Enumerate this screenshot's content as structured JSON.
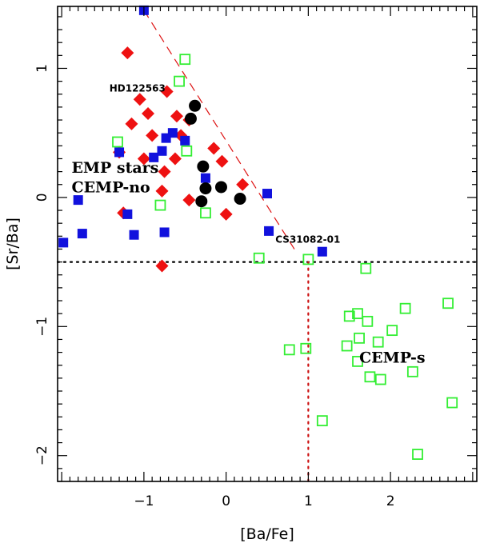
{
  "chart_data": {
    "type": "scatter",
    "title": "",
    "xlabel": "[Ba/Fe]",
    "ylabel": "[Sr/Ba]",
    "xlim": [
      -2.05,
      3.05
    ],
    "ylim": [
      -2.2,
      1.48
    ],
    "xticks": [
      -1,
      0,
      1,
      2
    ],
    "xtick_labels": [
      "−1",
      "0",
      "1",
      "2"
    ],
    "yticks": [
      -2,
      -1,
      0,
      1
    ],
    "ytick_labels": [
      "−2",
      "−1",
      "0",
      "1"
    ],
    "colors": {
      "red_diamond": "#ee1111",
      "blue_square": "#1111dd",
      "green_open_square": "#33ee33",
      "black_circle": "#000000",
      "red_dashed": "#dd1111",
      "red_dotted": "#cc1111"
    },
    "series": [
      {
        "name": "red-diamonds",
        "marker": "filled-diamond",
        "x": [
          -1.2,
          -1.05,
          -0.95,
          -1.15,
          -0.9,
          -1.3,
          -1.0,
          -0.72,
          -0.6,
          -0.55,
          -0.45,
          -0.62,
          -0.75,
          -0.45,
          -0.15,
          -0.05,
          0.2,
          0.0,
          -0.78,
          -1.25,
          -0.78
        ],
        "y": [
          1.12,
          0.76,
          0.65,
          0.57,
          0.48,
          0.35,
          0.3,
          0.82,
          0.63,
          0.48,
          0.6,
          0.3,
          0.2,
          -0.02,
          0.38,
          0.28,
          0.1,
          -0.13,
          0.05,
          -0.12,
          -0.53
        ]
      },
      {
        "name": "blue-squares",
        "marker": "filled-square",
        "x": [
          -1.0,
          -1.3,
          -0.65,
          -0.73,
          -0.88,
          -0.78,
          -0.5,
          -0.25,
          -1.8,
          -1.2,
          -1.12,
          -1.75,
          -1.98,
          -0.75,
          0.5,
          0.52,
          1.17
        ],
        "y": [
          1.45,
          0.35,
          0.5,
          0.46,
          0.31,
          0.36,
          0.44,
          0.15,
          -0.02,
          -0.13,
          -0.29,
          -0.28,
          -0.35,
          -0.27,
          0.03,
          -0.26,
          -0.42
        ]
      },
      {
        "name": "green-open-squares",
        "marker": "open-square",
        "x": [
          -0.5,
          -0.57,
          -1.32,
          -0.48,
          -0.8,
          -0.25,
          0.4,
          1.0,
          1.7,
          0.77,
          0.97,
          1.17,
          1.5,
          1.6,
          1.62,
          1.72,
          1.85,
          2.02,
          2.18,
          1.47,
          1.6,
          1.75,
          1.88,
          2.27,
          2.33,
          2.7,
          2.75
        ],
        "y": [
          1.07,
          0.9,
          0.43,
          0.36,
          -0.06,
          -0.12,
          -0.47,
          -0.48,
          -0.55,
          -1.18,
          -1.17,
          -1.73,
          -0.92,
          -0.9,
          -1.09,
          -0.96,
          -1.12,
          -1.03,
          -0.86,
          -1.15,
          -1.27,
          -1.39,
          -1.41,
          -1.35,
          -1.99,
          -0.82,
          -1.59
        ]
      },
      {
        "name": "black-circles",
        "marker": "filled-circle",
        "x": [
          -0.38,
          -0.43,
          -0.28,
          -0.25,
          -0.3,
          -0.06,
          0.17
        ],
        "y": [
          0.71,
          0.61,
          0.24,
          0.07,
          -0.03,
          0.08,
          -0.01
        ]
      }
    ],
    "lines": [
      {
        "name": "dashed-diagonal",
        "style": "dashed",
        "color": "red",
        "x": [
          -1.0,
          0.85
        ],
        "y": [
          1.45,
          -0.42
        ]
      },
      {
        "name": "dotted-horizontal",
        "style": "dotted",
        "color": "black",
        "x": [
          -2.05,
          3.05
        ],
        "y": [
          -0.5,
          -0.5
        ]
      },
      {
        "name": "dotted-vertical",
        "style": "dotted",
        "color": "red",
        "x": [
          1.0,
          1.0
        ],
        "y": [
          -0.5,
          -2.2
        ]
      }
    ],
    "annotations": [
      {
        "text": "HD122563",
        "x": -1.42,
        "y": 0.82,
        "style": "small"
      },
      {
        "text": "CS31082-01",
        "x": 0.6,
        "y": -0.35,
        "style": "small"
      },
      {
        "text": "EMP stars",
        "x": -1.88,
        "y": 0.19,
        "style": "big"
      },
      {
        "text": "CEMP-no",
        "x": -1.88,
        "y": 0.04,
        "style": "big"
      },
      {
        "text": "CEMP-s",
        "x": 1.62,
        "y": -1.28,
        "style": "big"
      }
    ]
  }
}
